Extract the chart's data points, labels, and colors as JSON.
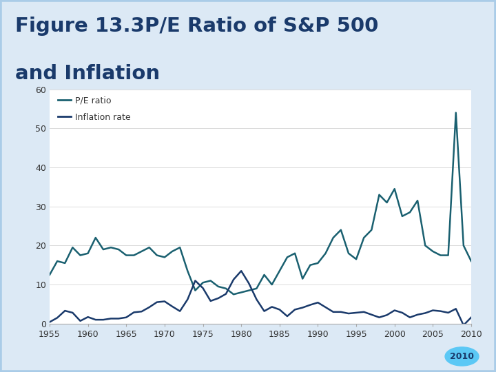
{
  "title_line1": "Figure 13.3P/E Ratio of S&P 500",
  "title_line2": "and Inflation",
  "title_color": "#1a3a6b",
  "background_color": "#dce9f5",
  "plot_bg_color": "#ffffff",
  "line_pe_color": "#1a6070",
  "line_inf_color": "#1a3a6b",
  "legend_pe": "P/E ratio",
  "legend_inf": "Inflation rate",
  "ylim": [
    0,
    60
  ],
  "yticks": [
    0,
    10,
    20,
    30,
    40,
    50,
    60
  ],
  "xlim": [
    1955,
    2010
  ],
  "xticks": [
    1955,
    1960,
    1965,
    1970,
    1975,
    1980,
    1985,
    1990,
    1995,
    2000,
    2005,
    2010
  ],
  "circle_color": "#5bc8f5",
  "circle_label": "2010",
  "pe_ratio": {
    "years": [
      1955,
      1956,
      1957,
      1958,
      1959,
      1960,
      1961,
      1962,
      1963,
      1964,
      1965,
      1966,
      1967,
      1968,
      1969,
      1970,
      1971,
      1972,
      1973,
      1974,
      1975,
      1976,
      1977,
      1978,
      1979,
      1980,
      1981,
      1982,
      1983,
      1984,
      1985,
      1986,
      1987,
      1988,
      1989,
      1990,
      1991,
      1992,
      1993,
      1994,
      1995,
      1996,
      1997,
      1998,
      1999,
      2000,
      2001,
      2002,
      2003,
      2004,
      2005,
      2006,
      2007,
      2008,
      2009,
      2010
    ],
    "values": [
      12.5,
      16.0,
      15.5,
      19.5,
      17.5,
      18.0,
      22.0,
      19.0,
      19.5,
      19.0,
      17.5,
      17.5,
      18.5,
      19.5,
      17.5,
      17.0,
      18.5,
      19.5,
      13.5,
      8.5,
      10.5,
      11.0,
      9.5,
      9.0,
      7.5,
      8.0,
      8.5,
      9.0,
      12.5,
      10.0,
      13.5,
      17.0,
      18.0,
      11.5,
      15.0,
      15.5,
      18.0,
      22.0,
      24.0,
      18.0,
      16.5,
      22.0,
      24.0,
      33.0,
      31.0,
      34.5,
      27.5,
      28.5,
      31.5,
      20.0,
      18.5,
      17.5,
      17.5,
      54.0,
      20.0,
      16.0
    ]
  },
  "inflation": {
    "years": [
      1955,
      1956,
      1957,
      1958,
      1959,
      1960,
      1961,
      1962,
      1963,
      1964,
      1965,
      1966,
      1967,
      1968,
      1969,
      1970,
      1971,
      1972,
      1973,
      1974,
      1975,
      1976,
      1977,
      1978,
      1979,
      1980,
      1981,
      1982,
      1983,
      1984,
      1985,
      1986,
      1987,
      1988,
      1989,
      1990,
      1991,
      1992,
      1993,
      1994,
      1995,
      1996,
      1997,
      1998,
      1999,
      2000,
      2001,
      2002,
      2003,
      2004,
      2005,
      2006,
      2007,
      2008,
      2009,
      2010
    ],
    "values": [
      0.4,
      1.5,
      3.3,
      2.8,
      0.7,
      1.7,
      1.0,
      1.0,
      1.3,
      1.3,
      1.6,
      2.9,
      3.1,
      4.2,
      5.5,
      5.7,
      4.4,
      3.2,
      6.2,
      11.0,
      9.1,
      5.8,
      6.5,
      7.6,
      11.3,
      13.5,
      10.3,
      6.2,
      3.2,
      4.3,
      3.6,
      1.9,
      3.6,
      4.1,
      4.8,
      5.4,
      4.2,
      3.0,
      3.0,
      2.6,
      2.8,
      3.0,
      2.3,
      1.6,
      2.2,
      3.4,
      2.8,
      1.6,
      2.3,
      2.7,
      3.4,
      3.2,
      2.8,
      3.8,
      -0.4,
      1.6
    ]
  }
}
